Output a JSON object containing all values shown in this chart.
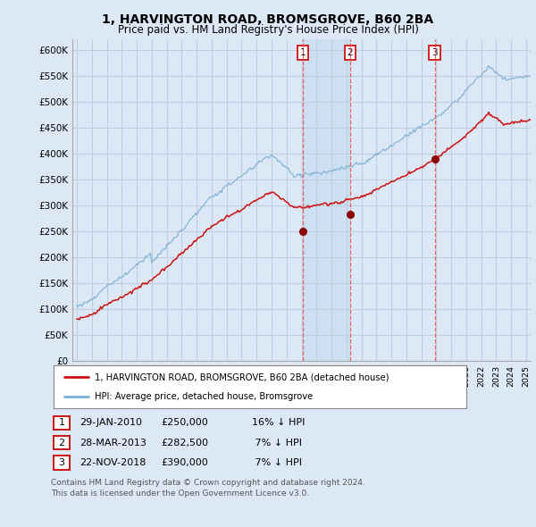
{
  "title": "1, HARVINGTON ROAD, BROMSGROVE, B60 2BA",
  "subtitle": "Price paid vs. HM Land Registry's House Price Index (HPI)",
  "title_fontsize": 10,
  "subtitle_fontsize": 8.5,
  "ylabel_ticks": [
    "£0",
    "£50K",
    "£100K",
    "£150K",
    "£200K",
    "£250K",
    "£300K",
    "£350K",
    "£400K",
    "£450K",
    "£500K",
    "£550K",
    "£600K"
  ],
  "ytick_values": [
    0,
    50000,
    100000,
    150000,
    200000,
    250000,
    300000,
    350000,
    400000,
    450000,
    500000,
    550000,
    600000
  ],
  "ylim": [
    0,
    620000
  ],
  "background_color": "#dce8f5",
  "plot_bg_color": "#dce8f5",
  "grid_color": "#c0cfe0",
  "hpi_color": "#7aafd4",
  "price_color": "#cc1111",
  "sale_marker_color": "#8b0000",
  "vline_color": "#ee5555",
  "shade_color": "#c8ddf0",
  "transactions": [
    {
      "num": 1,
      "date_label": "29-JAN-2010",
      "price": 250000,
      "hpi_pct": "16% ↓ HPI",
      "x_year": 2010.08
    },
    {
      "num": 2,
      "date_label": "28-MAR-2013",
      "price": 282500,
      "hpi_pct": "7% ↓ HPI",
      "x_year": 2013.24
    },
    {
      "num": 3,
      "date_label": "22-NOV-2018",
      "price": 390000,
      "hpi_pct": "7% ↓ HPI",
      "x_year": 2018.9
    }
  ],
  "legend1": "1, HARVINGTON ROAD, BROMSGROVE, B60 2BA (detached house)",
  "legend2": "HPI: Average price, detached house, Bromsgrove",
  "footnote": "Contains HM Land Registry data © Crown copyright and database right 2024.\nThis data is licensed under the Open Government Licence v3.0.",
  "xmin": 1994.7,
  "xmax": 2025.3
}
